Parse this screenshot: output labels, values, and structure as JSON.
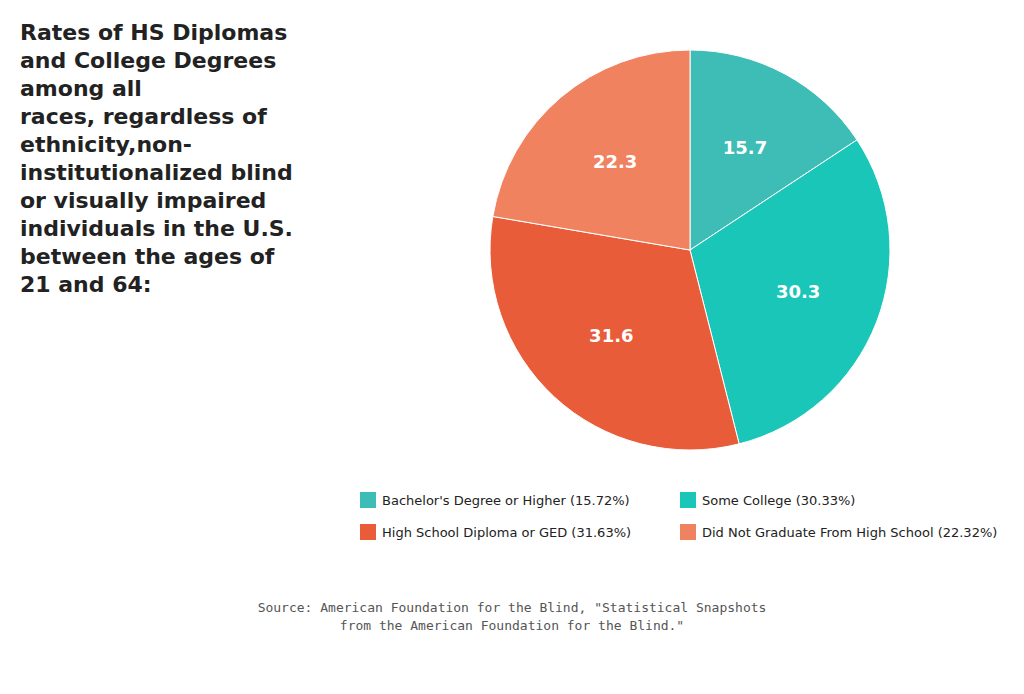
{
  "chart_data": {
    "type": "pie",
    "title": "Rates of HS Diplomas\nand College Degrees\namong all\nraces, regardless of\nethnicity,non-\ninstitutionalized blind\nor visually impaired\nindividuals in the U.S.\nbetween the ages of\n21 and 64:",
    "categories": [
      "Bachelor's Degree or Higher (15.72%)",
      "Some College (30.33%)",
      "High School Diploma or GED (31.63%)",
      "Did Not Graduate From High School (22.32%)"
    ],
    "values": [
      15.72,
      30.33,
      31.63,
      22.32
    ],
    "value_labels": [
      "15.7",
      "30.3",
      "31.6",
      "22.3"
    ],
    "colors": [
      "#3dbdb5",
      "#1ac6b8",
      "#e85c3a",
      "#f0825f"
    ],
    "data_labels": true,
    "legend": "bottom",
    "annotations": [
      "Source: American Foundation for the Blind, \"Statistical Snapshots\nfrom the American Foundation for the Blind.\""
    ]
  }
}
